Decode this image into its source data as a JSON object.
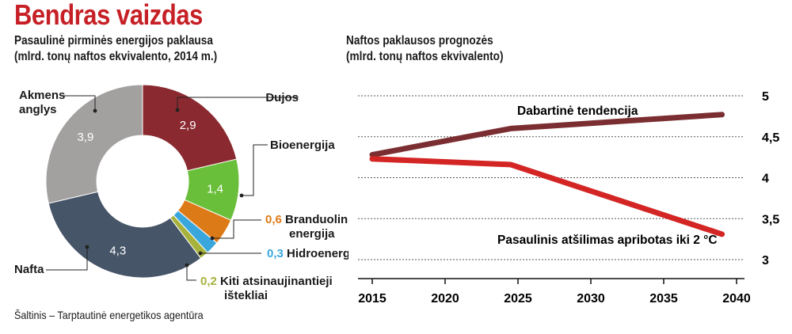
{
  "header": {
    "title": "Bendras vaizdas"
  },
  "footer": {
    "source": "Šaltinis – Tarptautinė energetikos agentūra"
  },
  "colors": {
    "title": "#c62026",
    "coal": "#a3a0a0",
    "gas": "#8a2a30",
    "bio": "#6abf3a",
    "nuclear": "#dd7a18",
    "hydro": "#3aa7dc",
    "other": "#a7b23c",
    "oil": "#465567",
    "trend_line": "#7b2e31",
    "climate_line": "#d42525"
  },
  "chart_data": [
    {
      "type": "pie",
      "title": "Pasaulinė pirminės energijos paklausa",
      "subtitle": "(mlrd. tonų naftos ekvivalento, 2014 m.)",
      "donut": true,
      "slices": [
        {
          "key": "gas",
          "label": "Dujos",
          "value": 2.9,
          "value_text": "2,9"
        },
        {
          "key": "bio",
          "label": "Bioenergija",
          "value": 1.4,
          "value_text": "1,4"
        },
        {
          "key": "nuclear",
          "label": "Branduolinė energija",
          "label_lines": [
            "Branduolinė",
            "energija"
          ],
          "value": 0.6,
          "value_text": "0,6"
        },
        {
          "key": "hydro",
          "label": "Hidroenergija",
          "value": 0.3,
          "value_text": "0,3"
        },
        {
          "key": "other",
          "label": "Kiti atsinaujinantieji ištekliai",
          "label_lines": [
            "Kiti atsinaujinantieji",
            "ištekliai"
          ],
          "value": 0.2,
          "value_text": "0,2"
        },
        {
          "key": "oil",
          "label": "Nafta",
          "value": 4.3,
          "value_text": "4,3"
        },
        {
          "key": "coal",
          "label": "Akmens anglys",
          "label_lines": [
            "Akmens",
            "anglys"
          ],
          "value": 3.9,
          "value_text": "3,9"
        }
      ]
    },
    {
      "type": "line",
      "title": "Naftos paklausos prognozės",
      "subtitle": "(mlrd. tonų naftos ekvivalento)",
      "x_ticks": [
        2015,
        2020,
        2025,
        2030,
        2035,
        2040
      ],
      "xlim": [
        2015,
        2040
      ],
      "ylim": [
        3,
        5
      ],
      "y_ticks": [
        3,
        3.5,
        4,
        4.5,
        5
      ],
      "y_tick_labels": [
        "3",
        "3,5",
        "4",
        "4,5",
        "5"
      ],
      "y_axis_side": "right",
      "grid": "horizontal dashed",
      "series": [
        {
          "key": "trend",
          "name": "Dabartinė tendencija",
          "x": [
            2015,
            2024.5,
            2039
          ],
          "y": [
            4.28,
            4.6,
            4.77
          ]
        },
        {
          "key": "climate",
          "name": "Pasaulinis atšilimas apribotas iki 2 °C",
          "x": [
            2015,
            2024.5,
            2039
          ],
          "y": [
            4.23,
            4.16,
            3.31
          ]
        }
      ]
    }
  ]
}
